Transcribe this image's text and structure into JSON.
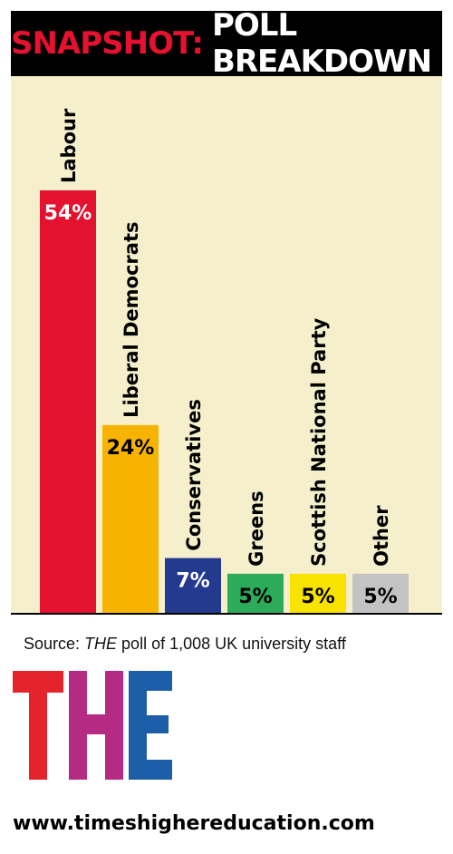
{
  "header": {
    "title_highlight": "SNAPSHOT:",
    "title_main": "POLL BREAKDOWN"
  },
  "chart_data": {
    "type": "bar",
    "categories": [
      "Labour",
      "Liberal Democrats",
      "Conservatives",
      "Greens",
      "Scottish National Party",
      "Other"
    ],
    "values": [
      54,
      24,
      7,
      5,
      5,
      5
    ],
    "data_labels": [
      "54%",
      "24%",
      "7%",
      "5%",
      "5%",
      "5%"
    ],
    "colors": [
      "#e4112f",
      "#f6b400",
      "#243a8e",
      "#2cab5a",
      "#f7e200",
      "#c3c3c3"
    ],
    "label_colors": [
      "#ffffff",
      "#000000",
      "#ffffff",
      "#000000",
      "#000000",
      "#000000"
    ],
    "ylim": [
      0,
      54
    ],
    "title": "",
    "xlabel": "",
    "ylabel": "",
    "background": "#f6efcc"
  },
  "source": {
    "prefix": "Source: ",
    "publication": "THE",
    "suffix": " poll of 1,008 UK university staff"
  },
  "logo": {
    "text": "THE",
    "colors": [
      "#e4232c",
      "#b52b83",
      "#1c5ea8"
    ]
  },
  "footer": {
    "url": "www.timeshighereducation.com"
  }
}
